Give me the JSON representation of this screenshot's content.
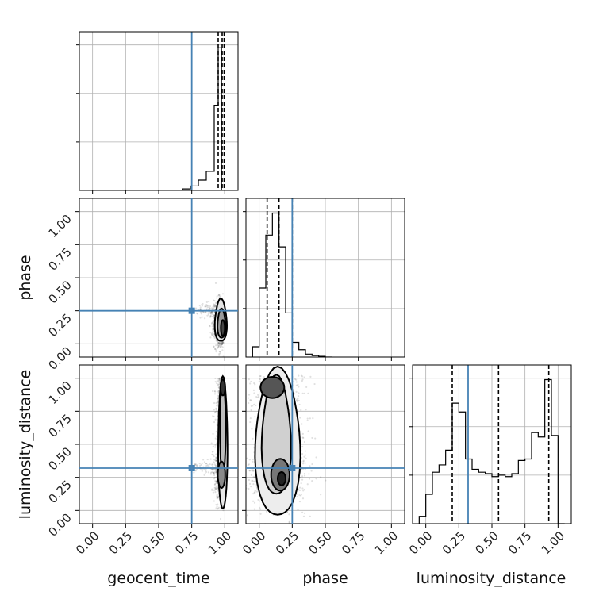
{
  "chart_data": {
    "type": "corner",
    "parameters": [
      "geocent_time",
      "phase",
      "luminosity_distance"
    ],
    "truths": [
      0.75,
      0.25,
      0.32
    ],
    "truth_color": "#4682b4",
    "xlim": [
      -0.1,
      1.1
    ],
    "ylim": [
      -0.1,
      1.1
    ],
    "ticks": [
      0.0,
      0.25,
      0.5,
      0.75,
      1.0
    ],
    "tick_labels": [
      "0.00",
      "0.25",
      "0.50",
      "0.75",
      "1.00"
    ],
    "grid": true,
    "quantiles": {
      "geocent_time": [
        0.95,
        0.98,
        0.995
      ],
      "phase": [
        0.06,
        0.15,
        0.25
      ],
      "luminosity_distance": [
        0.2,
        0.55,
        0.93
      ]
    },
    "histograms": {
      "geocent_time": {
        "edges": [
          0.68,
          0.74,
          0.8,
          0.86,
          0.92,
          0.95,
          0.975,
          1.0
        ],
        "counts": [
          0.01,
          0.03,
          0.07,
          0.13,
          0.58,
          0.97,
          0.0
        ],
        "ymax": 1.08
      },
      "phase": {
        "edges": [
          -0.05,
          0.0,
          0.05,
          0.1,
          0.15,
          0.2,
          0.25,
          0.3,
          0.35,
          0.4,
          0.45,
          0.5,
          0.55
        ],
        "counts": [
          0.07,
          0.47,
          0.83,
          0.98,
          0.75,
          0.3,
          0.1,
          0.05,
          0.02,
          0.01,
          0.005,
          0.0
        ],
        "ymax": 1.08
      },
      "luminosity_distance": {
        "edges": [
          -0.05,
          0.0,
          0.05,
          0.1,
          0.15,
          0.2,
          0.25,
          0.3,
          0.35,
          0.4,
          0.45,
          0.5,
          0.55,
          0.6,
          0.65,
          0.7,
          0.75,
          0.8,
          0.85,
          0.9,
          0.95,
          1.0,
          1.05
        ],
        "counts": [
          0.05,
          0.2,
          0.35,
          0.4,
          0.5,
          0.82,
          0.76,
          0.44,
          0.37,
          0.35,
          0.34,
          0.32,
          0.33,
          0.32,
          0.34,
          0.43,
          0.44,
          0.62,
          0.59,
          0.98,
          0.6,
          0.0
        ],
        "ymax": 1.08
      }
    },
    "joint_modes": [
      {
        "x": "geocent_time",
        "y": "phase",
        "peak": [
          0.99,
          0.12
        ]
      },
      {
        "x": "geocent_time",
        "y": "luminosity_distance",
        "peak": [
          0.99,
          0.95
        ]
      },
      {
        "x": "phase",
        "y": "luminosity_distance",
        "peak": [
          0.08,
          0.97
        ]
      }
    ]
  }
}
